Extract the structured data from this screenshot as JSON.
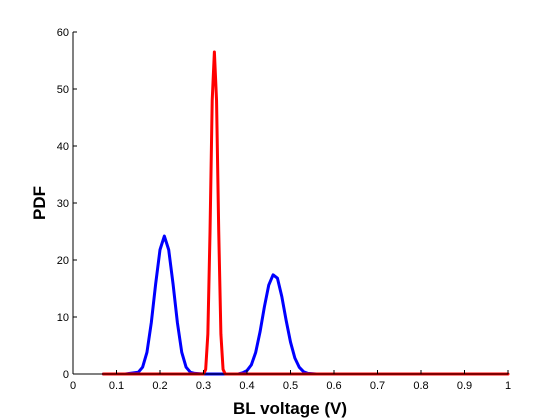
{
  "chart_data": {
    "type": "line",
    "title": "",
    "xlabel": "BL voltage (V)",
    "ylabel": "PDF",
    "xlim": [
      0,
      1
    ],
    "ylim": [
      0,
      60
    ],
    "x_ticks": [
      0,
      0.1,
      0.2,
      0.3,
      0.4,
      0.5,
      0.6,
      0.7,
      0.8,
      0.9,
      1
    ],
    "y_ticks": [
      0,
      10,
      20,
      30,
      40,
      50,
      60
    ],
    "grid": false,
    "legend": "none",
    "series": [
      {
        "color": "#0000ff",
        "x": [
          0.07,
          0.12,
          0.15,
          0.16,
          0.17,
          0.18,
          0.19,
          0.2,
          0.21,
          0.22,
          0.23,
          0.24,
          0.25,
          0.26,
          0.27,
          0.28,
          0.3,
          0.32,
          0.34,
          0.36,
          0.38,
          0.39,
          0.4,
          0.41,
          0.42,
          0.43,
          0.44,
          0.45,
          0.46,
          0.47,
          0.48,
          0.49,
          0.5,
          0.51,
          0.52,
          0.53,
          0.54,
          0.56,
          0.6,
          0.66
        ],
        "y": [
          0,
          0,
          0.3,
          1.2,
          3.8,
          9,
          15.8,
          21.8,
          24.2,
          21.8,
          15.8,
          9,
          3.8,
          1.2,
          0.3,
          0.1,
          0,
          0,
          0,
          0,
          0,
          0.2,
          0.6,
          1.6,
          3.8,
          7.4,
          11.8,
          15.6,
          17.4,
          16.8,
          13.6,
          9.4,
          5.6,
          2.8,
          1.2,
          0.4,
          0.1,
          0,
          0,
          0
        ]
      },
      {
        "color": "#ff0000",
        "x": [
          0.07,
          0.3,
          0.305,
          0.31,
          0.315,
          0.32,
          0.325,
          0.33,
          0.335,
          0.34,
          0.345,
          0.35,
          0.36,
          1.0
        ],
        "y": [
          0,
          0,
          0.8,
          7,
          25,
          48,
          56.5,
          48,
          25,
          7,
          0.8,
          0,
          0,
          0
        ]
      }
    ]
  }
}
